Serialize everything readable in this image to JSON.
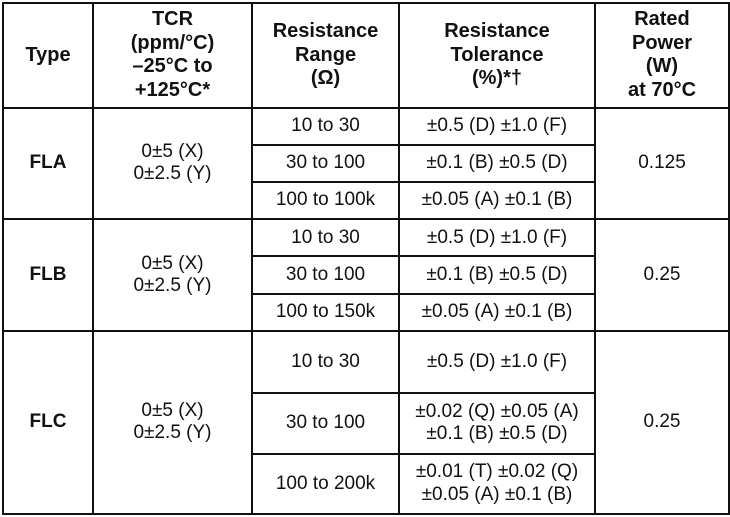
{
  "header": {
    "type": [
      "Type"
    ],
    "tcr": [
      "TCR",
      "(ppm/°C)",
      "–25°C to",
      "+125°C*"
    ],
    "range": [
      "Resistance",
      "Range",
      "(Ω)"
    ],
    "tolerance": [
      "Resistance",
      "Tolerance",
      "(%)*†"
    ],
    "power": [
      "Rated",
      "Power",
      "(W)",
      "at 70°C"
    ]
  },
  "groups": [
    {
      "type": "FLA",
      "tcr": [
        "0±5 (X)",
        "0±2.5 (Y)"
      ],
      "power": "0.125",
      "rows": [
        {
          "range": "10 to 30",
          "tolerance": [
            "±0.5 (D)  ±1.0 (F)"
          ]
        },
        {
          "range": "30 to 100",
          "tolerance": [
            "±0.1 (B)  ±0.5 (D)"
          ]
        },
        {
          "range": "100 to 100k",
          "tolerance": [
            "±0.05 (A)  ±0.1 (B)"
          ]
        }
      ]
    },
    {
      "type": "FLB",
      "tcr": [
        "0±5 (X)",
        "0±2.5 (Y)"
      ],
      "power": "0.25",
      "rows": [
        {
          "range": "10 to 30",
          "tolerance": [
            "±0.5 (D)  ±1.0 (F)"
          ]
        },
        {
          "range": "30 to 100",
          "tolerance": [
            "±0.1 (B)  ±0.5 (D)"
          ]
        },
        {
          "range": "100 to 150k",
          "tolerance": [
            "±0.05 (A)  ±0.1 (B)"
          ]
        }
      ]
    },
    {
      "type": "FLC",
      "tcr": [
        "0±5 (X)",
        "0±2.5 (Y)"
      ],
      "power": "0.25",
      "rows": [
        {
          "range": "10 to 30",
          "tolerance": [
            "±0.5 (D) ±1.0 (F)"
          ]
        },
        {
          "range": "30 to 100",
          "tolerance": [
            "±0.02 (Q) ±0.05 (A)",
            "±0.1 (B) ±0.5 (D)"
          ]
        },
        {
          "range": "100 to 200k",
          "tolerance": [
            "±0.01 (T) ±0.02 (Q)",
            "±0.05 (A) ±0.1 (B)"
          ]
        }
      ]
    }
  ]
}
